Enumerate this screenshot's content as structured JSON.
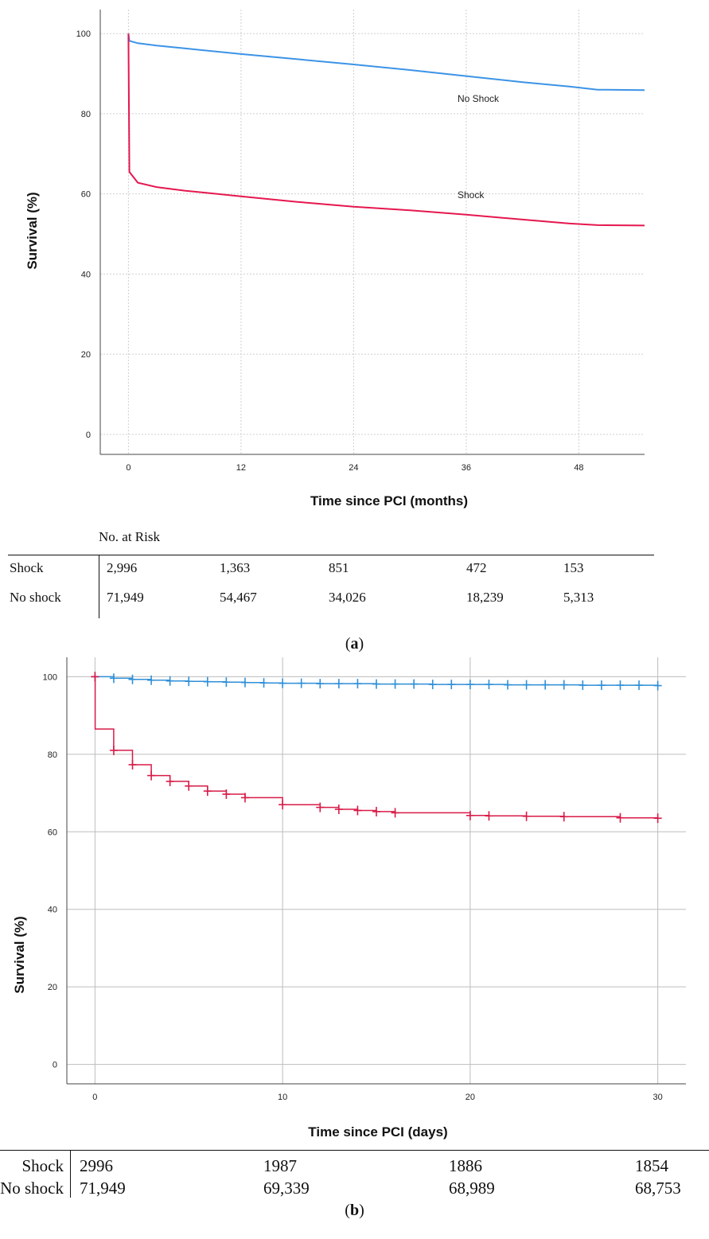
{
  "chart_data": [
    {
      "id": "a",
      "type": "line",
      "xlabel": "Time since PCI (months)",
      "ylabel": "Survival (%)",
      "xlim": [
        -3,
        55
      ],
      "ylim": [
        -5,
        106
      ],
      "xticks": [
        0,
        12,
        24,
        36,
        48
      ],
      "yticks": [
        0,
        20,
        40,
        60,
        80,
        100
      ],
      "grid": true,
      "series": [
        {
          "name": "No Shock",
          "color": "#3c93e6",
          "x": [
            0,
            0.1,
            1,
            3,
            6,
            12,
            18,
            24,
            30,
            36,
            42,
            47,
            50,
            55
          ],
          "y": [
            100,
            98.2,
            97.6,
            97.0,
            96.3,
            94.9,
            93.6,
            92.3,
            90.9,
            89.4,
            87.9,
            86.8,
            86.0,
            85.9
          ]
        },
        {
          "name": "Shock",
          "color": "#e5174f",
          "x": [
            0,
            0.1,
            1,
            3,
            6,
            12,
            18,
            24,
            30,
            36,
            42,
            47,
            50,
            55
          ],
          "y": [
            100,
            65.5,
            62.8,
            61.7,
            60.8,
            59.4,
            58.0,
            56.8,
            55.9,
            54.8,
            53.6,
            52.6,
            52.2,
            52.1
          ]
        }
      ],
      "risk_table": {
        "title": "No. at Risk",
        "rows": [
          {
            "label": "Shock",
            "values": [
              "2,996",
              "1,363",
              "851",
              "472",
              "153"
            ]
          },
          {
            "label": "No shock",
            "values": [
              "71,949",
              "54,467",
              "34,026",
              "18,239",
              "5,313"
            ]
          }
        ]
      },
      "caption": "a"
    },
    {
      "id": "b",
      "type": "line",
      "xlabel": "Time since PCI (days)",
      "ylabel": "Survival (%)",
      "xlim": [
        -1.5,
        31.5
      ],
      "ylim": [
        -5,
        105
      ],
      "xticks": [
        0,
        10,
        20,
        30
      ],
      "yticks": [
        0,
        20,
        40,
        60,
        80,
        100
      ],
      "grid": true,
      "step": true,
      "censor_marks": true,
      "series": [
        {
          "name": "",
          "color": "#2f8fd8",
          "x": [
            0,
            1,
            2,
            3,
            4,
            5,
            6,
            7,
            8,
            9,
            10,
            11,
            12,
            13,
            14,
            15,
            16,
            17,
            18,
            19,
            20,
            21,
            22,
            23,
            24,
            25,
            26,
            27,
            28,
            29,
            30
          ],
          "y": [
            100,
            99.6,
            99.3,
            99.1,
            98.9,
            98.8,
            98.7,
            98.6,
            98.5,
            98.4,
            98.3,
            98.3,
            98.2,
            98.2,
            98.2,
            98.1,
            98.1,
            98.1,
            98.0,
            98.0,
            98.0,
            98.0,
            97.9,
            97.9,
            97.9,
            97.9,
            97.8,
            97.8,
            97.8,
            97.8,
            97.7
          ]
        },
        {
          "name": "",
          "color": "#d81b48",
          "x": [
            0,
            0.01,
            1,
            2,
            3,
            4,
            5,
            6,
            7,
            8,
            10,
            12,
            13,
            14,
            15,
            16,
            20,
            21,
            23,
            25,
            28,
            30
          ],
          "y": [
            100,
            86.5,
            81.0,
            77.3,
            74.5,
            73.0,
            71.8,
            70.5,
            69.7,
            68.8,
            67.0,
            66.3,
            65.8,
            65.5,
            65.2,
            64.9,
            64.2,
            64.1,
            64.0,
            63.9,
            63.6,
            63.5
          ]
        }
      ],
      "risk_table": {
        "rows": [
          {
            "label": "Shock",
            "values": [
              "2996",
              "1987",
              "1886",
              "1854"
            ]
          },
          {
            "label": "No shock",
            "values": [
              "71,949",
              "69,339",
              "68,989",
              "68,753"
            ]
          }
        ]
      },
      "caption": "b"
    }
  ],
  "series_labels": {
    "no_shock": "No Shock",
    "shock": "Shock"
  }
}
